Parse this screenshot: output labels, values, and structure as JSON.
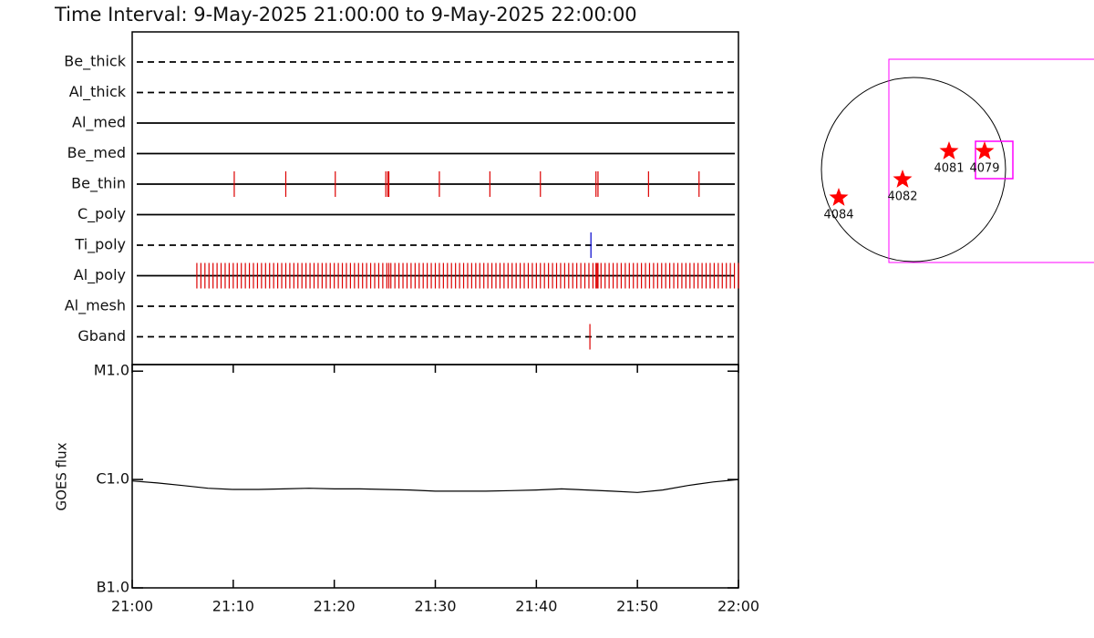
{
  "chart_data": [
    {
      "type": "timeline",
      "title": "Time Interval:  9-May-2025 21:00:00 to  9-May-2025 22:00:00",
      "xlim": [
        0,
        60
      ],
      "rows": [
        {
          "label": "Be_thick",
          "dashed": true,
          "color": "#dd0000",
          "times": []
        },
        {
          "label": "Al_thick",
          "dashed": true,
          "color": "#dd0000",
          "times": []
        },
        {
          "label": "Al_med",
          "dashed": false,
          "color": "#dd0000",
          "times": []
        },
        {
          "label": "Be_med",
          "dashed": false,
          "color": "#dd0000",
          "times": []
        },
        {
          "label": "Be_thin",
          "dashed": false,
          "color": "#dd0000",
          "times": [
            10.1,
            15.2,
            20.1,
            25.1,
            25.3,
            25.4,
            30.4,
            35.4,
            40.4,
            45.9,
            46.1,
            51.1,
            56.1
          ]
        },
        {
          "label": "C_poly",
          "dashed": false,
          "color": "#dd0000",
          "times": []
        },
        {
          "label": "Ti_poly",
          "dashed": true,
          "color": "#0000cc",
          "times": [
            45.4
          ]
        },
        {
          "label": "Al_poly",
          "dashed": false,
          "color": "#dd0000",
          "times": [
            6.4,
            6.8,
            7.2,
            7.6,
            8,
            8.4,
            8.8,
            9.2,
            9.6,
            10,
            10.4,
            10.8,
            11.2,
            11.6,
            12,
            12.4,
            12.8,
            13.2,
            13.6,
            14,
            14.4,
            14.8,
            15.2,
            15.6,
            16,
            16.4,
            16.8,
            17.2,
            17.6,
            18,
            18.4,
            18.8,
            19.2,
            19.6,
            20,
            20.4,
            20.8,
            21.2,
            21.6,
            22,
            22.4,
            22.8,
            23.2,
            23.6,
            24,
            24.4,
            24.8,
            25.2,
            25.4,
            25.6,
            26,
            26.4,
            26.8,
            27.2,
            27.6,
            28,
            28.4,
            28.8,
            29.2,
            29.6,
            30,
            30.4,
            30.8,
            31.2,
            31.6,
            32,
            32.4,
            32.8,
            33.2,
            33.6,
            34,
            34.4,
            34.8,
            35.2,
            35.6,
            36,
            36.4,
            36.8,
            37.2,
            37.6,
            38,
            38.4,
            38.8,
            39.2,
            39.6,
            40,
            40.4,
            40.8,
            41.2,
            41.6,
            42,
            42.4,
            42.8,
            43.2,
            43.6,
            44,
            44.4,
            44.8,
            45.2,
            45.6,
            45.9,
            46,
            46.1,
            46.4,
            46.8,
            47.2,
            47.6,
            48,
            48.4,
            48.8,
            49.2,
            49.6,
            50,
            50.4,
            50.8,
            51.2,
            51.6,
            52,
            52.4,
            52.8,
            53.2,
            53.6,
            54,
            54.4,
            54.8,
            55.2,
            55.6,
            56,
            56.4,
            56.8,
            57.2,
            57.6,
            58,
            58.4,
            58.8,
            59.2,
            59.6,
            60
          ]
        },
        {
          "label": "Al_mesh",
          "dashed": true,
          "color": "#dd0000",
          "times": []
        },
        {
          "label": "Gband",
          "dashed": true,
          "color": "#dd0000",
          "times": [
            45.3
          ]
        }
      ]
    },
    {
      "type": "line",
      "ylabel": "GOES flux",
      "log_y": true,
      "color": "#000000",
      "x": [
        0,
        2.5,
        5,
        7.5,
        10,
        12.5,
        15,
        17.5,
        20,
        22.5,
        25,
        27.5,
        30,
        32.5,
        35,
        37.5,
        40,
        42.5,
        45,
        47.5,
        50,
        52.5,
        55,
        57.5,
        60
      ],
      "values": [
        9.7e-07,
        9.3e-07,
        8.8e-07,
        8.3e-07,
        8.1e-07,
        8.1e-07,
        8.2e-07,
        8.3e-07,
        8.2e-07,
        8.2e-07,
        8.1e-07,
        8e-07,
        7.8e-07,
        7.8e-07,
        7.8e-07,
        7.9e-07,
        8e-07,
        8.2e-07,
        8e-07,
        7.8e-07,
        7.6e-07,
        8e-07,
        8.8e-07,
        9.5e-07,
        1e-06
      ],
      "xlim": [
        0,
        60
      ],
      "xticks": [
        {
          "value": 0,
          "label": "21:00"
        },
        {
          "value": 10,
          "label": "21:10"
        },
        {
          "value": 20,
          "label": "21:20"
        },
        {
          "value": 30,
          "label": "21:30"
        },
        {
          "value": 40,
          "label": "21:40"
        },
        {
          "value": 50,
          "label": "21:50"
        },
        {
          "value": 60,
          "label": "22:00"
        }
      ],
      "ylim": [
        1e-07,
        1.15e-05
      ],
      "yticks": [
        {
          "value": 1e-07,
          "label": "B1.0"
        },
        {
          "value": 1e-06,
          "label": "C1.0"
        },
        {
          "value": 1e-05,
          "label": "M1.0"
        }
      ]
    },
    {
      "type": "disk",
      "color": "#ff0000",
      "box_color": "#ff00ff",
      "regions": [
        {
          "label": "4084"
        },
        {
          "label": "4082"
        },
        {
          "label": "4081"
        },
        {
          "label": "4079"
        }
      ]
    }
  ]
}
